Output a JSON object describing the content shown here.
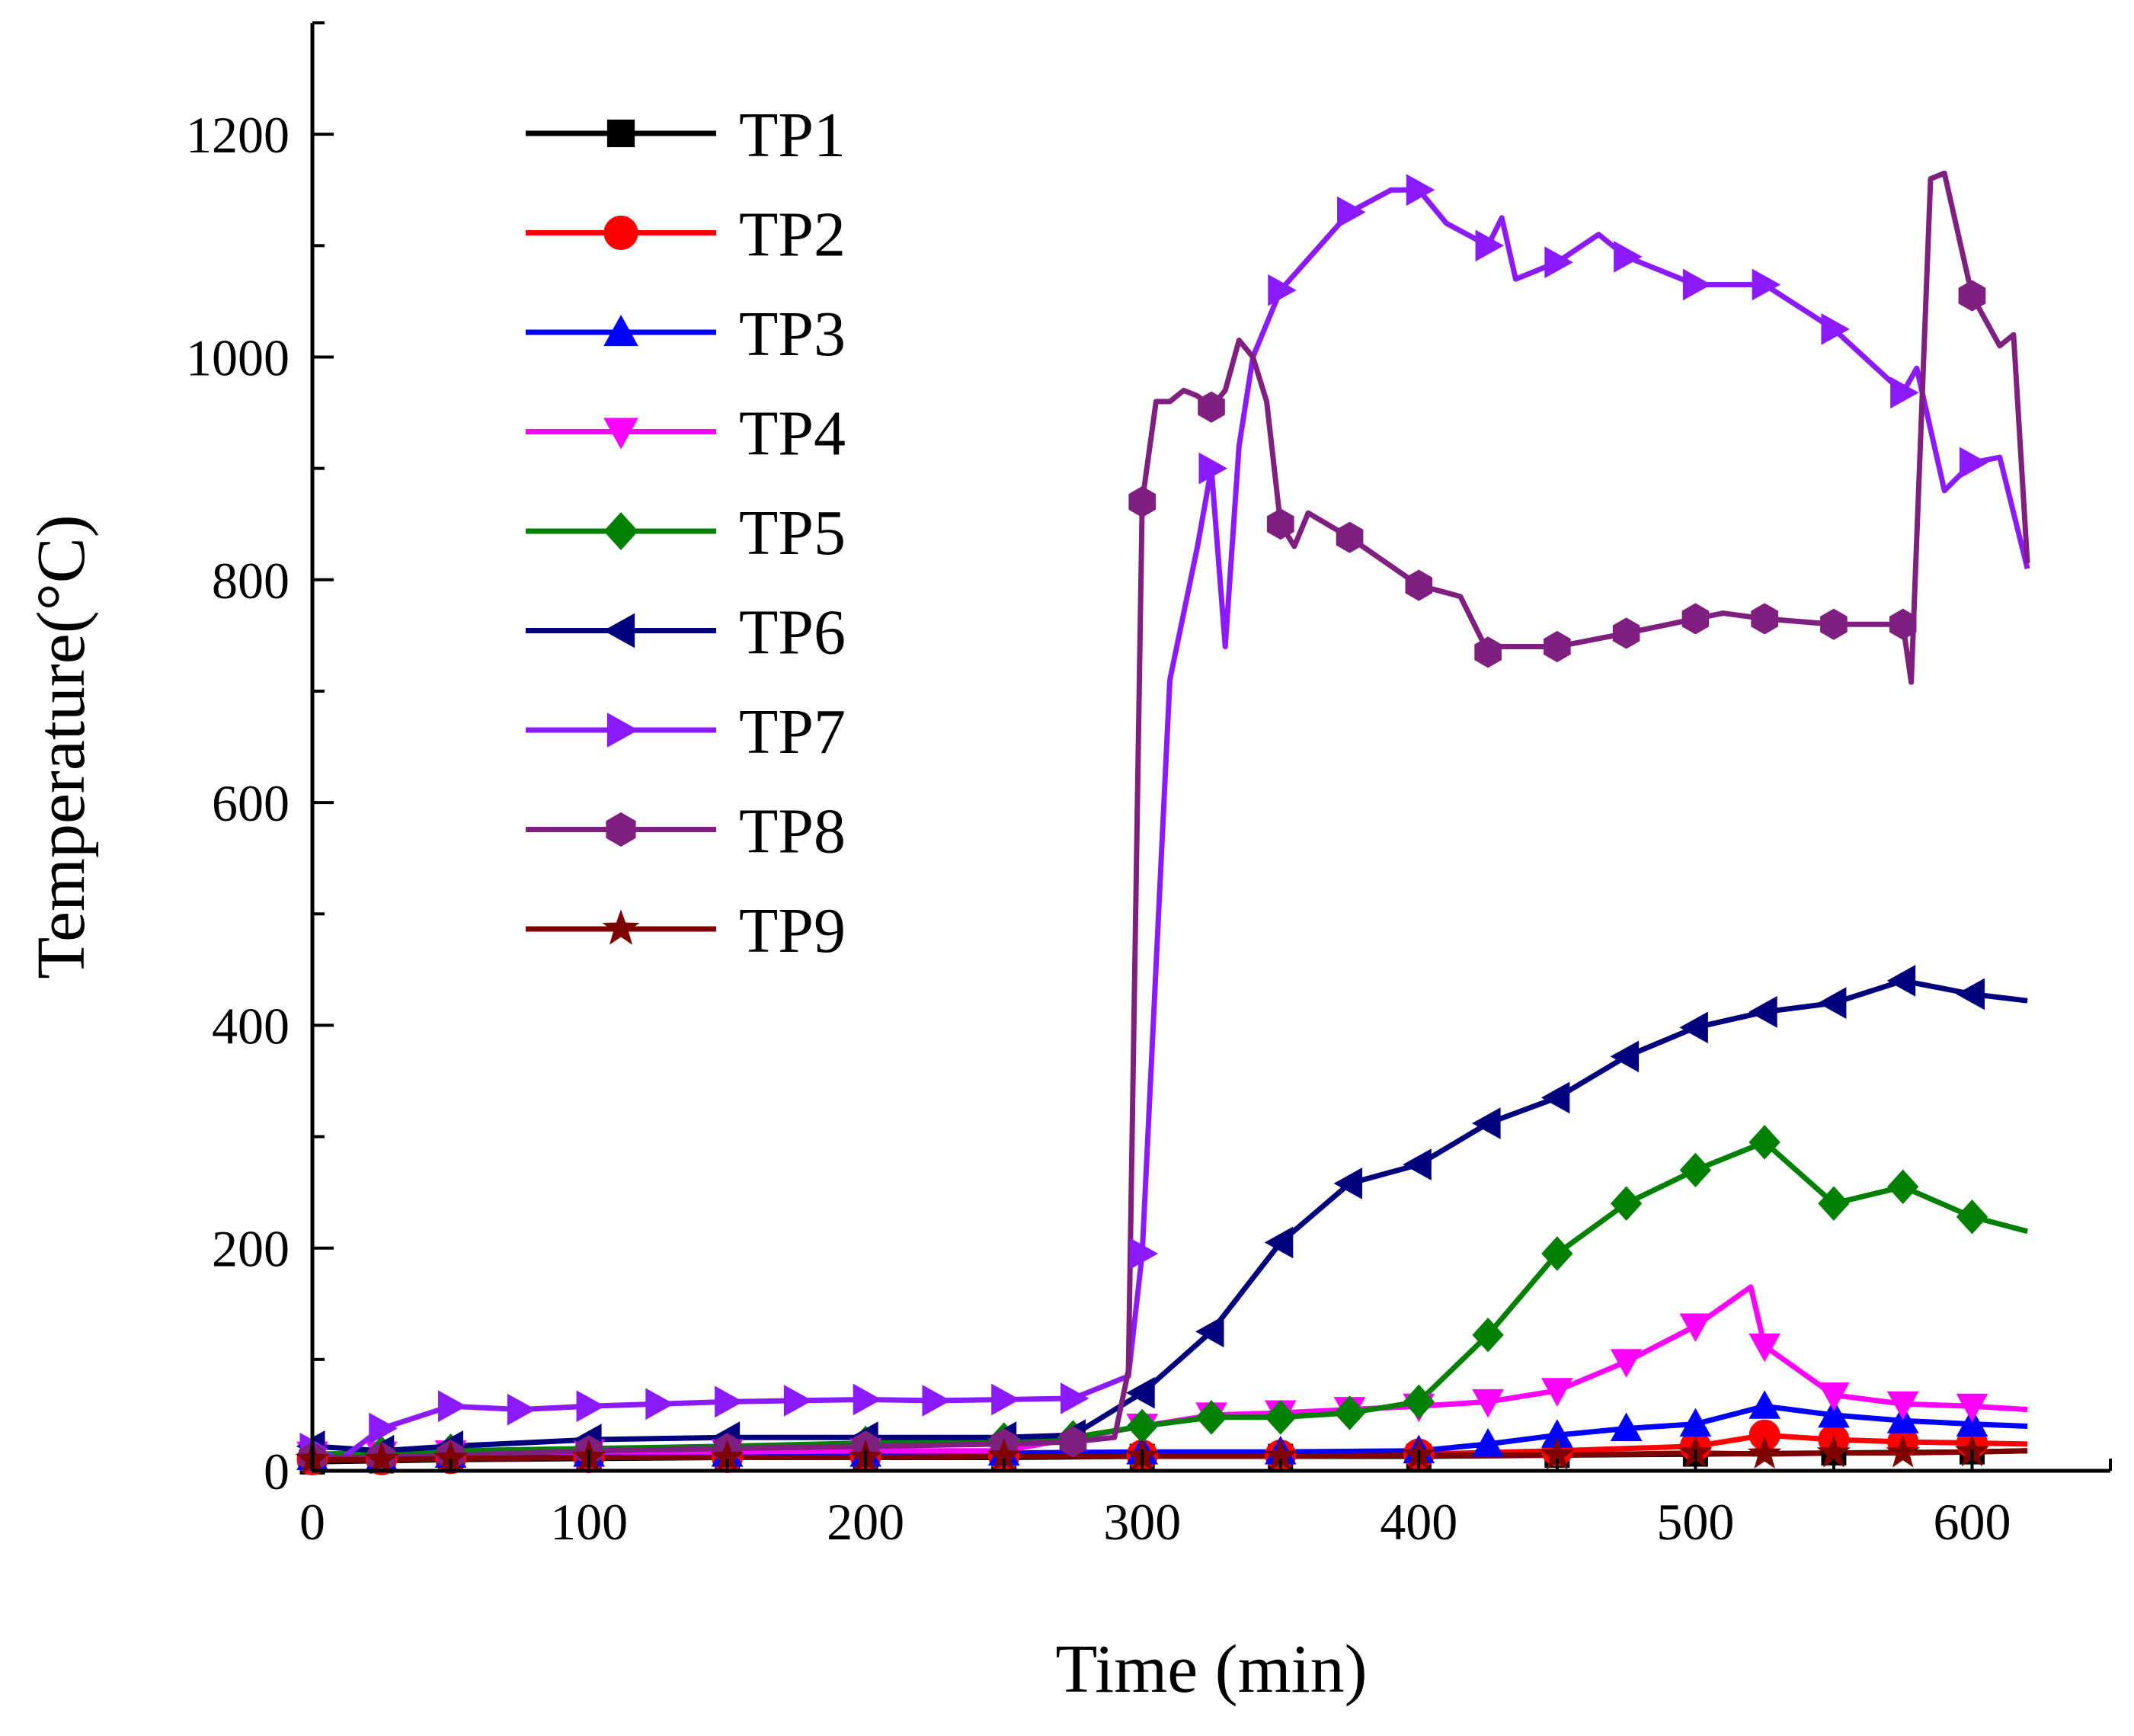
{
  "chart_data": {
    "type": "line",
    "title": "",
    "xlabel": "Time (min)",
    "ylabel": "Temperature(°C)",
    "xlim": [
      0,
      650
    ],
    "ylim": [
      0,
      1300
    ],
    "xticks": [
      0,
      100,
      200,
      300,
      400,
      500,
      600
    ],
    "yticks": [
      0,
      200,
      400,
      600,
      800,
      1000,
      1200
    ],
    "grid": false,
    "legend_position": "top-left",
    "series": [
      {
        "name": "TP1",
        "color": "#000000",
        "marker": "square",
        "x": [
          0,
          25,
          50,
          100,
          150,
          200,
          250,
          300,
          350,
          400,
          450,
          500,
          550,
          600,
          620
        ],
        "y": [
          8,
          9,
          10,
          11,
          12,
          12,
          12,
          13,
          13,
          13,
          14,
          15,
          16,
          17,
          18
        ]
      },
      {
        "name": "TP2",
        "color": "#ff0000",
        "marker": "circle",
        "x": [
          0,
          25,
          50,
          100,
          150,
          200,
          250,
          300,
          350,
          400,
          450,
          500,
          525,
          550,
          575,
          600,
          620
        ],
        "y": [
          10,
          10,
          11,
          12,
          12,
          13,
          13,
          14,
          14,
          15,
          18,
          22,
          32,
          28,
          26,
          25,
          24
        ]
      },
      {
        "name": "TP3",
        "color": "#0000ff",
        "marker": "triangle-up",
        "x": [
          0,
          25,
          50,
          100,
          150,
          200,
          250,
          300,
          350,
          400,
          425,
          450,
          475,
          500,
          525,
          550,
          575,
          600,
          620
        ],
        "y": [
          12,
          12,
          14,
          15,
          15,
          15,
          16,
          17,
          17,
          18,
          24,
          32,
          38,
          42,
          58,
          50,
          45,
          42,
          40
        ]
      },
      {
        "name": "TP4",
        "color": "#ff00ff",
        "marker": "triangle-down",
        "x": [
          0,
          25,
          50,
          100,
          150,
          200,
          250,
          300,
          325,
          350,
          375,
          400,
          425,
          450,
          475,
          500,
          520,
          525,
          550,
          575,
          600,
          620
        ],
        "y": [
          15,
          15,
          16,
          17,
          17,
          18,
          18,
          40,
          50,
          52,
          55,
          58,
          62,
          72,
          98,
          130,
          165,
          112,
          68,
          60,
          58,
          55
        ]
      },
      {
        "name": "TP5",
        "color": "#008000",
        "marker": "diamond",
        "x": [
          0,
          25,
          50,
          100,
          150,
          200,
          250,
          275,
          300,
          325,
          350,
          375,
          400,
          425,
          450,
          475,
          500,
          525,
          550,
          575,
          600,
          620
        ],
        "y": [
          15,
          16,
          18,
          20,
          22,
          25,
          28,
          30,
          40,
          48,
          48,
          52,
          62,
          122,
          195,
          240,
          270,
          295,
          240,
          255,
          228,
          215
        ]
      },
      {
        "name": "TP6",
        "color": "#00007f",
        "marker": "triangle-left",
        "x": [
          0,
          25,
          50,
          100,
          150,
          200,
          250,
          275,
          300,
          325,
          350,
          375,
          400,
          425,
          450,
          475,
          500,
          525,
          550,
          575,
          600,
          620
        ],
        "y": [
          22,
          18,
          22,
          28,
          30,
          30,
          30,
          32,
          70,
          125,
          205,
          258,
          275,
          312,
          335,
          372,
          398,
          412,
          420,
          440,
          428,
          422
        ]
      },
      {
        "name": "TP7",
        "color": "#8b1aff",
        "marker": "triangle-right",
        "x": [
          0,
          10,
          25,
          50,
          75,
          100,
          125,
          150,
          175,
          200,
          225,
          250,
          275,
          290,
          295,
          300,
          310,
          320,
          325,
          330,
          335,
          340,
          350,
          375,
          390,
          400,
          410,
          425,
          430,
          435,
          450,
          465,
          475,
          500,
          525,
          550,
          575,
          580,
          590,
          600,
          610,
          620
        ],
        "y": [
          20,
          10,
          38,
          58,
          55,
          58,
          60,
          62,
          63,
          64,
          63,
          64,
          65,
          80,
          85,
          195,
          710,
          830,
          900,
          740,
          920,
          1000,
          1060,
          1130,
          1150,
          1150,
          1120,
          1100,
          1125,
          1070,
          1085,
          1110,
          1090,
          1065,
          1065,
          1025,
          968,
          990,
          880,
          905,
          910,
          810
        ]
      },
      {
        "name": "TP8",
        "color": "#7f1f7f",
        "marker": "hexagon",
        "x": [
          0,
          25,
          50,
          100,
          150,
          200,
          250,
          275,
          290,
          295,
          300,
          305,
          310,
          315,
          320,
          325,
          330,
          335,
          340,
          345,
          350,
          355,
          360,
          375,
          400,
          415,
          425,
          430,
          450,
          475,
          500,
          510,
          525,
          550,
          575,
          578,
          585,
          590,
          600,
          610,
          615,
          620
        ],
        "y": [
          12,
          12,
          14,
          18,
          20,
          22,
          24,
          26,
          30,
          90,
          870,
          960,
          960,
          970,
          965,
          955,
          970,
          1015,
          1000,
          960,
          850,
          830,
          860,
          838,
          795,
          785,
          735,
          740,
          740,
          752,
          765,
          770,
          765,
          760,
          760,
          708,
          1160,
          1165,
          1055,
          1010,
          1020,
          815
        ]
      },
      {
        "name": "TP9",
        "color": "#7f0000",
        "marker": "star",
        "x": [
          0,
          25,
          50,
          100,
          150,
          200,
          250,
          300,
          350,
          400,
          450,
          500,
          525,
          550,
          575,
          600,
          620
        ],
        "y": [
          10,
          10,
          11,
          12,
          12,
          12,
          13,
          13,
          13,
          14,
          14,
          16,
          15,
          16,
          16,
          17,
          18
        ]
      }
    ]
  }
}
